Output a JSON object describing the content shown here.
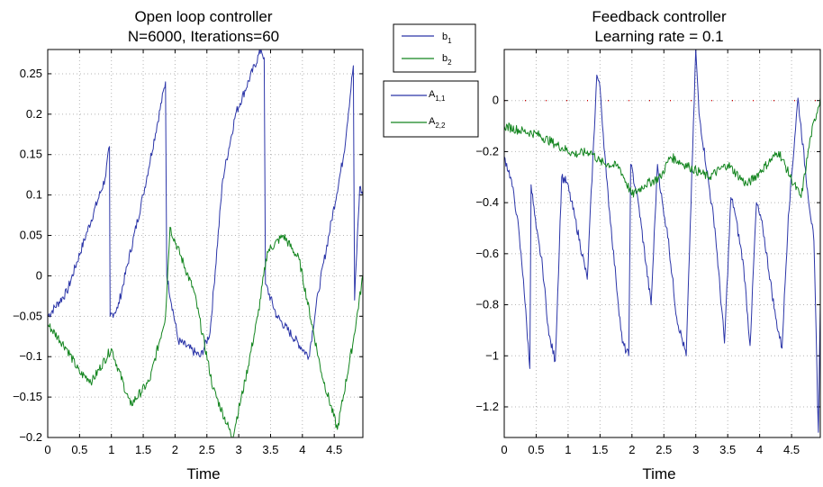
{
  "legends": {
    "b": [
      "b",
      "b"
    ],
    "b_subs": [
      "1",
      "2"
    ],
    "A": [
      "A",
      "A"
    ],
    "A_subs": [
      "1,1",
      "2,2"
    ]
  },
  "colors": {
    "series1": "#2b35a8",
    "series2": "#13851f",
    "ref": "#cc0000",
    "grid": "#b5b5b5"
  },
  "chart_data": [
    {
      "type": "line",
      "title": "Open loop controller",
      "subtitle": "N=6000, Iterations=60",
      "xlabel": "Time",
      "ylabel": "",
      "xlim": [
        0,
        4.95
      ],
      "ylim": [
        -0.2,
        0.28
      ],
      "xticks": [
        0,
        0.5,
        1,
        1.5,
        2,
        2.5,
        3,
        3.5,
        4,
        4.5
      ],
      "xtick_labels": [
        "0",
        "0.5",
        "1",
        "1.5",
        "2",
        "2.5",
        "3",
        "3.5",
        "4",
        "4.5"
      ],
      "yticks": [
        -0.2,
        -0.15,
        -0.1,
        -0.05,
        0,
        0.05,
        0.1,
        0.15,
        0.2,
        0.25
      ],
      "ytick_labels": [
        "−0.2",
        "−0.15",
        "−0.1",
        "−0.05",
        "0",
        "0.05",
        "0.1",
        "0.15",
        "0.2",
        "0.25"
      ],
      "grid": true,
      "series": [
        {
          "x": [
            0,
            0.3,
            0.6,
            0.9,
            0.97,
            0.98,
            1.1,
            1.5,
            1.85,
            1.87,
            2.05,
            2.4,
            2.55,
            2.75,
            2.95,
            3.35,
            3.4,
            3.42,
            3.6,
            4.1,
            4.25,
            4.65,
            4.8,
            4.82,
            4.9,
            4.95
          ],
          "y": [
            -0.05,
            -0.02,
            0.05,
            0.12,
            0.16,
            -0.05,
            -0.04,
            0.1,
            0.24,
            0.0,
            -0.08,
            -0.1,
            -0.07,
            0.12,
            0.2,
            0.28,
            0.27,
            -0.01,
            -0.05,
            -0.1,
            -0.02,
            0.15,
            0.26,
            -0.03,
            0.11,
            0.1
          ],
          "color": "#2b35a8"
        },
        {
          "x": [
            0,
            0.3,
            0.5,
            0.7,
            1.0,
            1.3,
            1.6,
            1.85,
            1.92,
            2.3,
            2.6,
            2.9,
            3.1,
            3.3,
            3.45,
            3.7,
            3.95,
            4.3,
            4.55,
            4.8,
            4.95
          ],
          "y": [
            -0.06,
            -0.09,
            -0.12,
            -0.13,
            -0.09,
            -0.16,
            -0.13,
            -0.05,
            0.06,
            -0.02,
            -0.14,
            -0.2,
            -0.13,
            -0.05,
            0.03,
            0.05,
            0.02,
            -0.12,
            -0.19,
            -0.08,
            0.0
          ],
          "color": "#13851f"
        }
      ]
    },
    {
      "type": "line",
      "title": "Feedback controller",
      "subtitle": "Learning rate = 0.1",
      "xlabel": "Time",
      "ylabel": "",
      "xlim": [
        0,
        4.95
      ],
      "ylim": [
        -1.32,
        0.2
      ],
      "xticks": [
        0,
        0.5,
        1,
        1.5,
        2,
        2.5,
        3,
        3.5,
        4,
        4.5
      ],
      "xtick_labels": [
        "0",
        "0.5",
        "1",
        "1.5",
        "2",
        "2.5",
        "3",
        "3.5",
        "4",
        "4.5"
      ],
      "yticks": [
        -1.2,
        -1.0,
        -0.8,
        -0.6,
        -0.4,
        -0.2,
        0
      ],
      "ytick_labels": [
        "−1.2",
        "−1",
        "−0.8",
        "−0.6",
        "−0.4",
        "−0.2",
        "0"
      ],
      "grid": true,
      "reference_y": 0,
      "series": [
        {
          "x": [
            0,
            0.1,
            0.2,
            0.3,
            0.4,
            0.42,
            0.5,
            0.6,
            0.7,
            0.8,
            0.9,
            0.98,
            1.1,
            1.3,
            1.45,
            1.5,
            1.6,
            1.75,
            1.85,
            1.95,
            1.98,
            2.1,
            2.3,
            2.4,
            2.5,
            2.55,
            2.7,
            2.85,
            3.0,
            3.05,
            3.3,
            3.45,
            3.55,
            3.6,
            3.75,
            3.85,
            3.95,
            4.05,
            4.25,
            4.35,
            4.45,
            4.6,
            4.75,
            4.85,
            4.92,
            4.95
          ],
          "y": [
            -0.22,
            -0.3,
            -0.45,
            -0.7,
            -1.05,
            -0.33,
            -0.5,
            -0.65,
            -0.92,
            -1.02,
            -0.3,
            -0.32,
            -0.45,
            -0.7,
            0.1,
            0.05,
            -0.3,
            -0.7,
            -0.95,
            -1.0,
            -0.25,
            -0.4,
            -0.8,
            -0.25,
            -0.45,
            -0.5,
            -0.85,
            -1.0,
            0.2,
            -0.05,
            -0.5,
            -0.95,
            -0.38,
            -0.42,
            -0.65,
            -0.96,
            -0.4,
            -0.5,
            -0.85,
            -0.97,
            -0.45,
            0.01,
            -0.35,
            -0.55,
            -1.3,
            -0.8
          ],
          "color": "#2b35a8"
        },
        {
          "x": [
            0,
            0.3,
            0.5,
            0.8,
            1.1,
            1.35,
            1.5,
            1.8,
            2.0,
            2.2,
            2.45,
            2.6,
            2.9,
            3.2,
            3.5,
            3.8,
            4.0,
            4.3,
            4.5,
            4.65,
            4.8,
            4.95
          ],
          "y": [
            -0.1,
            -0.12,
            -0.13,
            -0.17,
            -0.21,
            -0.2,
            -0.24,
            -0.26,
            -0.37,
            -0.33,
            -0.3,
            -0.22,
            -0.26,
            -0.3,
            -0.25,
            -0.33,
            -0.28,
            -0.2,
            -0.31,
            -0.38,
            -0.14,
            0.01
          ],
          "color": "#13851f"
        }
      ]
    }
  ]
}
